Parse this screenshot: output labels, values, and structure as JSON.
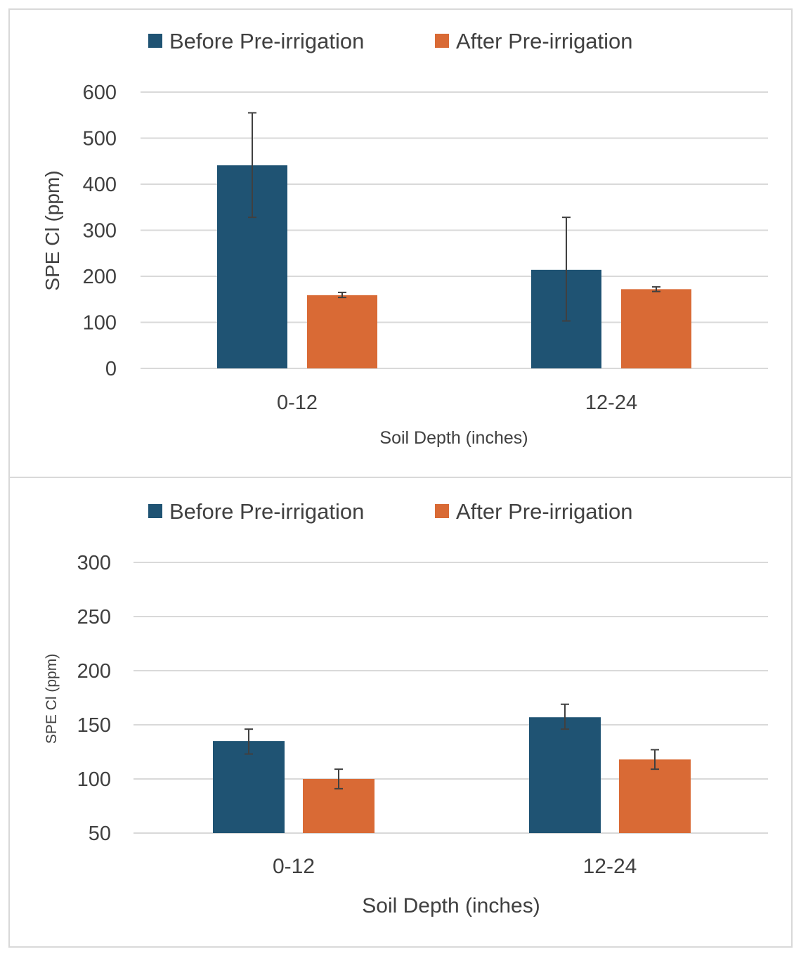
{
  "colors": {
    "before": "#1f5373",
    "after": "#d96a35",
    "grid": "#d9d9d9",
    "error": "#404040",
    "text": "#404040"
  },
  "chart_data": [
    {
      "type": "bar",
      "categories": [
        "0-12",
        "12-24"
      ],
      "series": [
        {
          "name": "Before Pre-irrigation",
          "values": [
            441,
            214
          ],
          "error_low": [
            328,
            103
          ],
          "error_high": [
            555,
            328
          ]
        },
        {
          "name": "After Pre-irrigation",
          "values": [
            159,
            172
          ],
          "error_low": [
            154,
            167
          ],
          "error_high": [
            165,
            177
          ]
        }
      ],
      "title": "",
      "xlabel": "Soil Depth (inches)",
      "ylabel": "SPE Cl (ppm)",
      "ylim": [
        0,
        600
      ],
      "yticks": [
        "0",
        "100",
        "200",
        "300",
        "400",
        "500",
        "600"
      ],
      "legend_position": "top",
      "grid": true
    },
    {
      "type": "bar",
      "categories": [
        "0-12",
        "12-24"
      ],
      "series": [
        {
          "name": "Before Pre-irrigation",
          "values": [
            135,
            157
          ],
          "error_low": [
            123,
            146
          ],
          "error_high": [
            146,
            169
          ]
        },
        {
          "name": "After Pre-irrigation",
          "values": [
            100,
            118
          ],
          "error_low": [
            91,
            109
          ],
          "error_high": [
            109,
            127
          ]
        }
      ],
      "title": "",
      "xlabel": "Soil Depth (inches)",
      "ylabel": "SPE Cl (ppm)",
      "ylim": [
        50,
        300
      ],
      "yticks": [
        "50",
        "100",
        "150",
        "200",
        "250",
        "300"
      ],
      "legend_position": "top",
      "grid": true
    }
  ]
}
